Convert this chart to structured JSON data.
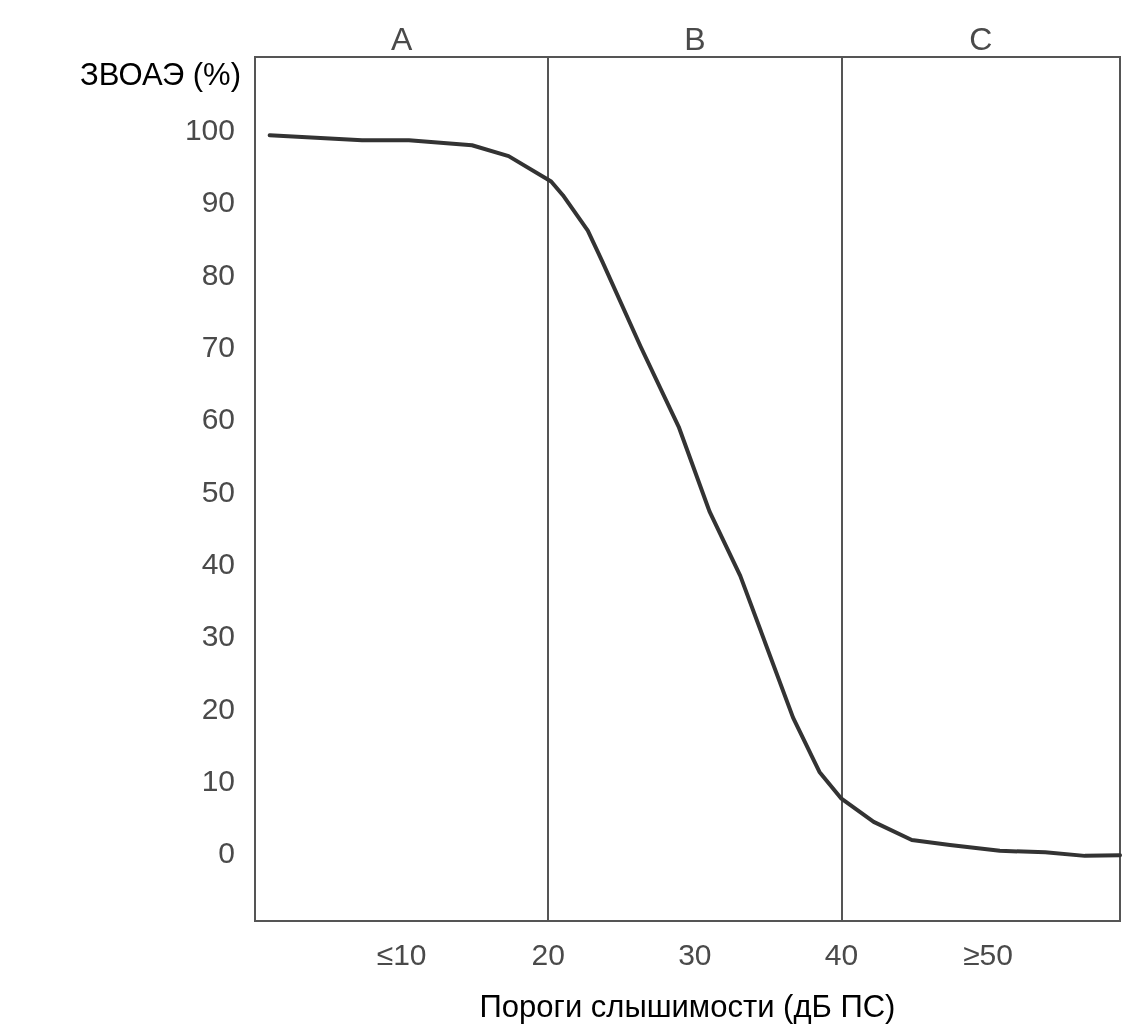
{
  "chart_data": {
    "type": "line",
    "xlabel": "Пороги слышимости (дБ ПС)",
    "ylabel": "ЗВОАЭ (%)",
    "x": [
      1.0,
      7.3,
      10.5,
      14.8,
      17.3,
      20.2,
      21.0,
      22.7,
      23.7,
      26.3,
      28.9,
      31.0,
      33.1,
      36.7,
      38.5,
      40.0,
      42.2,
      44.8,
      47.4,
      50.8,
      53.9,
      56.6,
      59.0
    ],
    "series": [
      {
        "color": "#333333",
        "values": [
          99.2,
          98.5,
          98.5,
          97.8,
          96.3,
          92.8,
          90.9,
          86.0,
          81.7,
          70.0,
          58.9,
          47.2,
          38.3,
          18.7,
          11.2,
          7.5,
          4.3,
          1.8,
          1.1,
          0.3,
          0.1,
          -0.4,
          -0.3
        ]
      }
    ],
    "xlim": [
      0,
      59
    ],
    "xticks": [
      {
        "value": 10,
        "label": "≤10"
      },
      20,
      30,
      40,
      {
        "value": 50,
        "label": "≥50"
      }
    ],
    "ylim": [
      -9.4,
      110
    ],
    "yticks": [
      0,
      10,
      20,
      30,
      40,
      50,
      60,
      70,
      80,
      90,
      100
    ],
    "ref_lines": [
      {
        "axis": "x",
        "value": 20,
        "color": "#555555"
      },
      {
        "axis": "x",
        "value": 40,
        "color": "#555555"
      }
    ],
    "annotations": [
      "A",
      "B",
      "C"
    ],
    "grid": false,
    "marker": "none",
    "line_style": "solid"
  }
}
